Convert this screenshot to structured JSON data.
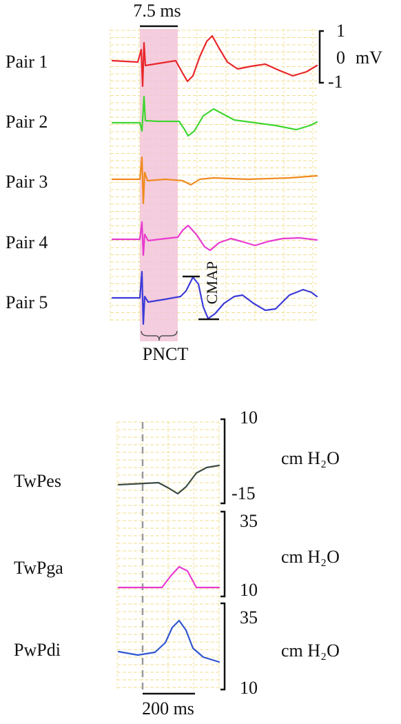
{
  "top_panel": {
    "time_scale": "7.5 ms",
    "rows": [
      {
        "label": "Pair 1"
      },
      {
        "label": "Pair 2"
      },
      {
        "label": "Pair 3"
      },
      {
        "label": "Pair 4"
      },
      {
        "label": "Pair 5"
      }
    ],
    "amplitude_scale": {
      "top": 1,
      "middle": 0,
      "unit": "mV",
      "bottom": -1
    },
    "annotations": {
      "cmap": "CMAP",
      "pnct": "PNCT"
    }
  },
  "bottom_panel": {
    "rows": [
      {
        "label": "TwPes",
        "scale_top": 10,
        "scale_bottom": -15,
        "unit": "cm H₂O"
      },
      {
        "label": "TwPga",
        "scale_top": 35,
        "scale_bottom": 10,
        "unit": "cm H₂O"
      },
      {
        "label": "PwPdi",
        "scale_top": 35,
        "scale_bottom": 10,
        "unit": "cm H₂O"
      }
    ],
    "time_scale": "200 ms"
  }
}
